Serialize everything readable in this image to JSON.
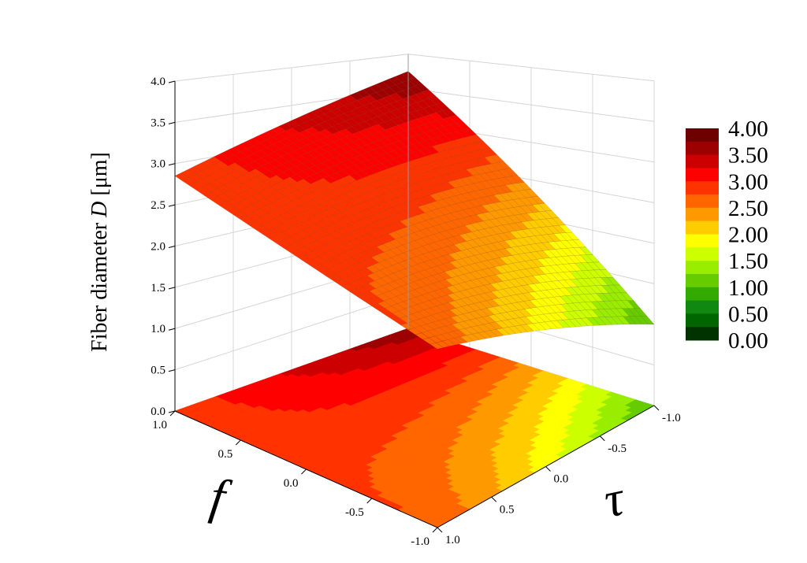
{
  "chart_data": {
    "type": "surface3d",
    "zlabel": "Fiber diameter ",
    "zlabel_var": "D",
    "zlabel_unit": " [μm]",
    "xlabel": "f",
    "ylabel": "τ",
    "zlim": [
      0,
      4
    ],
    "z_ticks": [
      "0.0",
      "0.5",
      "1.0",
      "1.5",
      "2.0",
      "2.5",
      "3.0",
      "3.5",
      "4.0"
    ],
    "f_ticks": [
      "1.0",
      "0.5",
      "0.0",
      "-0.5",
      "-1.0"
    ],
    "tau_ticks": [
      "-1.0",
      "-0.5",
      "0.0",
      "0.5",
      "1.0"
    ],
    "grid": true,
    "corner_values": [
      {
        "f": 1.0,
        "tau": 1.0,
        "D": 2.85
      },
      {
        "f": 1.0,
        "tau": -1.0,
        "D": 3.75
      },
      {
        "f": -1.0,
        "tau": -1.0,
        "D": 1.0
      },
      {
        "f": -1.0,
        "tau": 1.0,
        "D": 2.75
      }
    ],
    "colorbar": {
      "labels": [
        "4.00",
        "3.50",
        "3.00",
        "2.50",
        "2.00",
        "1.50",
        "1.00",
        "0.50",
        "0.00"
      ],
      "levels": [
        {
          "from": 3.75,
          "to": 4.0,
          "color": "#6e0000"
        },
        {
          "from": 3.5,
          "to": 3.75,
          "color": "#9c0000"
        },
        {
          "from": 3.25,
          "to": 3.5,
          "color": "#cc0000"
        },
        {
          "from": 3.0,
          "to": 3.25,
          "color": "#ff0000"
        },
        {
          "from": 2.75,
          "to": 3.0,
          "color": "#ff3300"
        },
        {
          "from": 2.5,
          "to": 2.75,
          "color": "#ff6600"
        },
        {
          "from": 2.25,
          "to": 2.5,
          "color": "#ff9900"
        },
        {
          "from": 2.0,
          "to": 2.25,
          "color": "#ffcc00"
        },
        {
          "from": 1.75,
          "to": 2.0,
          "color": "#ffff00"
        },
        {
          "from": 1.5,
          "to": 1.75,
          "color": "#ccff00"
        },
        {
          "from": 1.25,
          "to": 1.5,
          "color": "#99ee00"
        },
        {
          "from": 1.0,
          "to": 1.25,
          "color": "#66cc00"
        },
        {
          "from": 0.75,
          "to": 1.0,
          "color": "#33aa00"
        },
        {
          "from": 0.5,
          "to": 0.75,
          "color": "#118811"
        },
        {
          "from": 0.25,
          "to": 0.5,
          "color": "#006600"
        },
        {
          "from": 0.0,
          "to": 0.25,
          "color": "#003300"
        }
      ]
    }
  }
}
